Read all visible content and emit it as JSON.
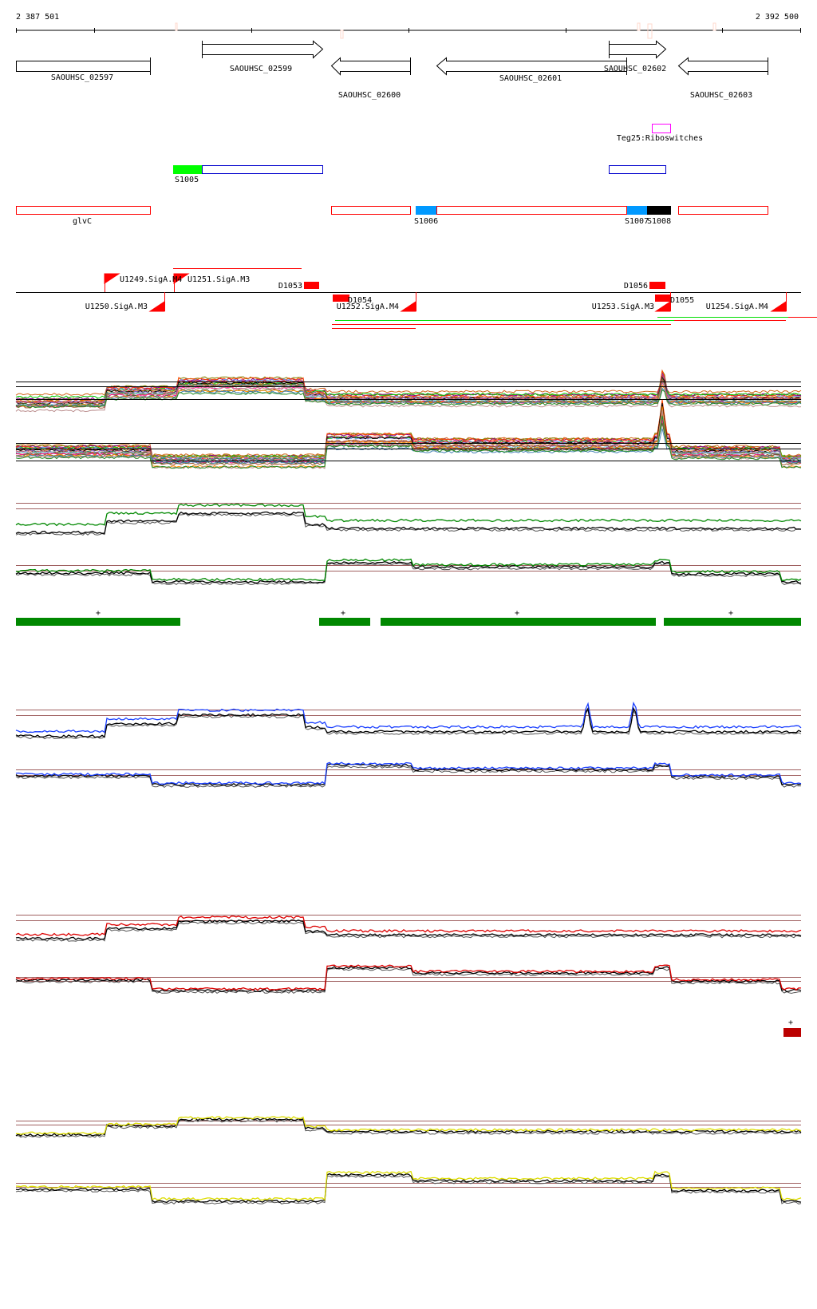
{
  "ruler": {
    "start_label": "2 387 501",
    "end_label": "2 392 500"
  },
  "genes": [
    {
      "name": "SAOUHSC_02597",
      "strand": "+"
    },
    {
      "name": "SAOUHSC_02599",
      "strand": "+"
    },
    {
      "name": "SAOUHSC_02600",
      "strand": "-"
    },
    {
      "name": "SAOUHSC_02601",
      "strand": "-"
    },
    {
      "name": "SAOUHSC_02602",
      "strand": "+"
    },
    {
      "name": "SAOUHSC_02603",
      "strand": "-"
    }
  ],
  "riboswitch": {
    "label": "Teg25:Riboswitches",
    "color": "#ff00ff"
  },
  "segments_plus": [
    {
      "label": "S1005",
      "color": "#00ff00"
    }
  ],
  "segments_minus": [
    {
      "label": "glvC"
    },
    {
      "label": "S1006",
      "color": "#0099ff"
    },
    {
      "label": "S1007",
      "color": "#0099ff"
    },
    {
      "label": "S1008",
      "color": "#000000"
    }
  ],
  "promoters": [
    {
      "label": "U1249.SigA.M4",
      "strand": "+"
    },
    {
      "label": "U1251.SigA.M3",
      "strand": "+"
    },
    {
      "label": "U1250.SigA.M3",
      "strand": "-"
    },
    {
      "label": "U1252.SigA.M4",
      "strand": "-"
    },
    {
      "label": "U1253.SigA.M3",
      "strand": "-"
    },
    {
      "label": "U1254.SigA.M4",
      "strand": "-"
    }
  ],
  "terminators": [
    {
      "label": "D1053"
    },
    {
      "label": "D1054"
    },
    {
      "label": "D1055"
    },
    {
      "label": "D1056"
    }
  ],
  "region_marks": {
    "symbol": "+",
    "green": "#008800",
    "red": "#bb0000"
  },
  "colors": {
    "feature_red": "#ff0000",
    "blue": "#0000cc",
    "green_trace": "#008800",
    "blue_trace": "#1a3fff",
    "red_trace": "#dd0000",
    "yellow_trace": "#dddd00",
    "ref_line": "#a06060"
  }
}
